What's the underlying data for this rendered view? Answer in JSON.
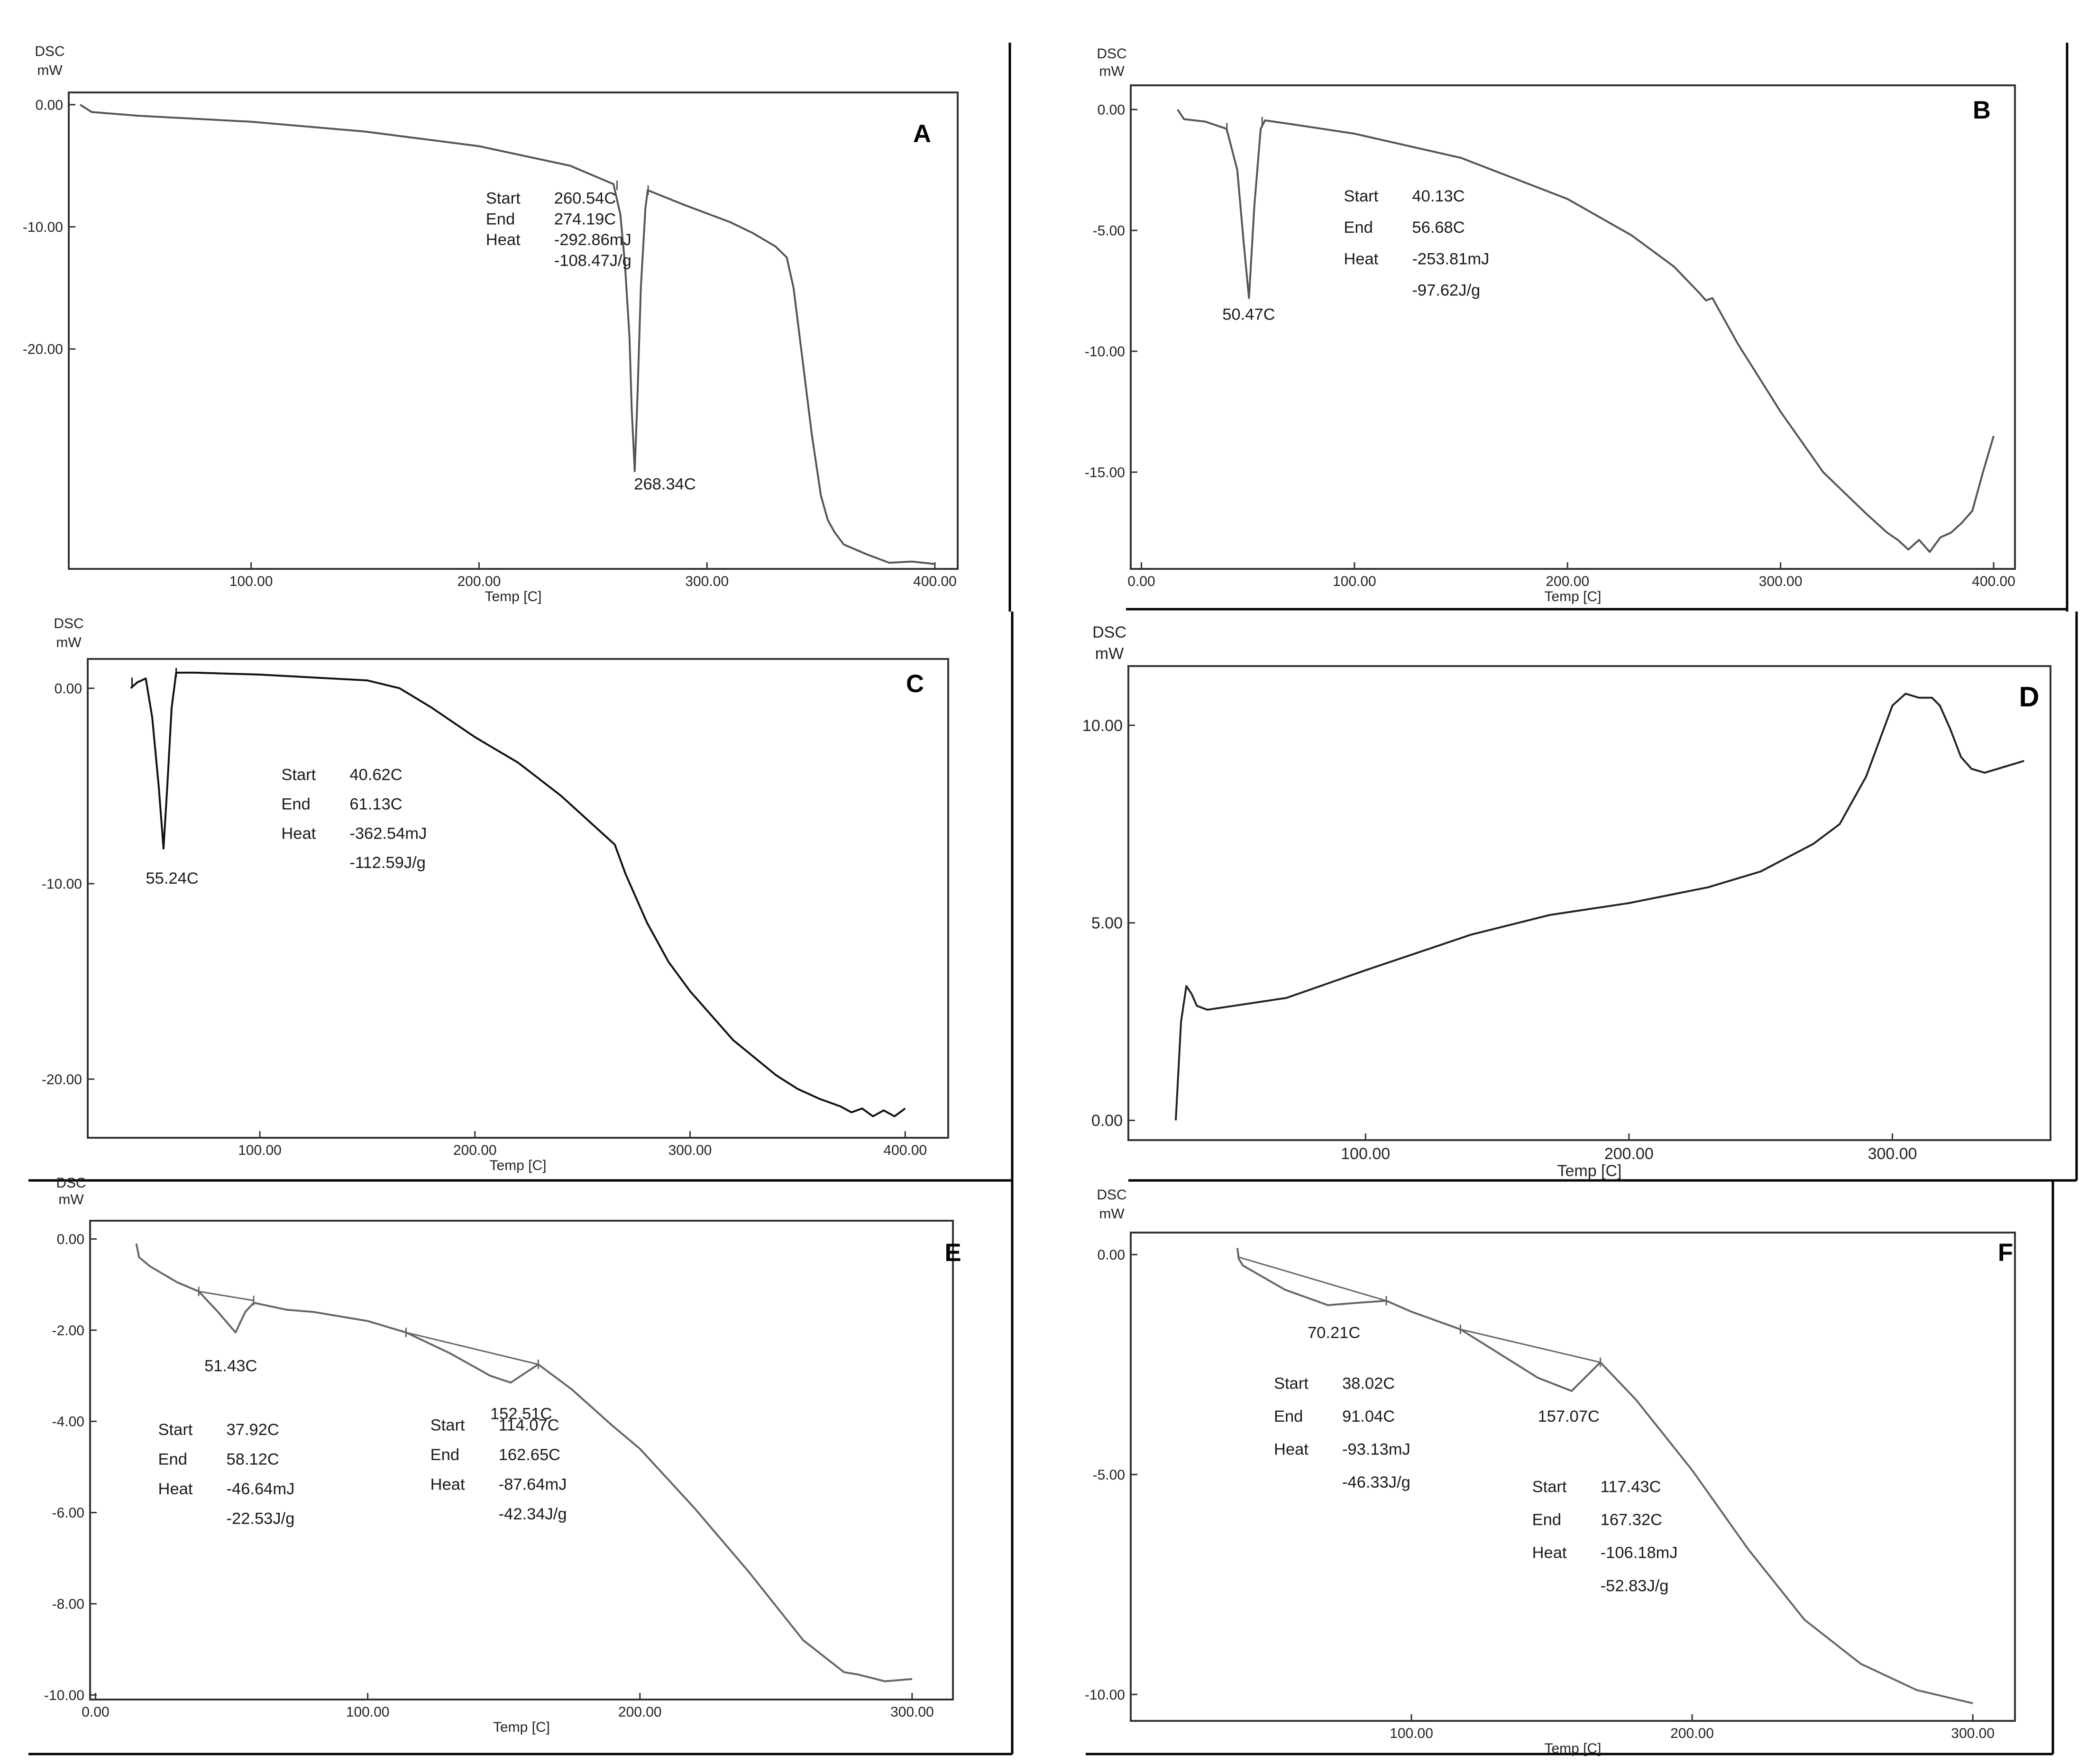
{
  "chart_data": [
    {
      "panel": "A",
      "type": "line",
      "ylabel": "DSC",
      "yunit": "mW",
      "xlabel": "Temp [C]",
      "xlim": [
        20,
        410
      ],
      "ylim": [
        -38,
        1
      ],
      "xticks": [
        100,
        200,
        300,
        400
      ],
      "xtick_labels": [
        "100.00",
        "200.00",
        "300.00",
        "400.00"
      ],
      "yticks": [
        0,
        -10,
        -20
      ],
      "ytick_labels": [
        "0.00",
        "-10.00",
        "-20.00"
      ],
      "color": "#555555",
      "x": [
        25,
        30,
        50,
        100,
        150,
        200,
        240,
        259,
        262,
        264,
        266,
        267,
        268.3,
        269.5,
        271,
        273,
        274,
        290,
        310,
        320,
        330,
        335,
        338,
        342,
        346,
        350,
        353,
        356,
        360,
        370,
        380,
        390,
        400
      ],
      "y": [
        0,
        -0.6,
        -0.9,
        -1.4,
        -2.2,
        -3.4,
        -5.0,
        -6.5,
        -9,
        -13,
        -19,
        -25,
        -30,
        -24,
        -15,
        -8.5,
        -7.0,
        -8.2,
        -9.6,
        -10.5,
        -11.6,
        -12.5,
        -15,
        -21,
        -27,
        -32,
        -34,
        -35,
        -36,
        -36.8,
        -37.5,
        -37.4,
        -37.6
      ],
      "markers": [
        {
          "x": 260.54,
          "y": -6.6
        },
        {
          "x": 274.19,
          "y": -7.0
        }
      ],
      "annotations": [
        {
          "label": "Start",
          "value": "260.54C",
          "x": 203,
          "y": -8.1
        },
        {
          "label": "End",
          "value": "274.19C",
          "x": 203,
          "y": -9.8
        },
        {
          "label": "Heat",
          "value": "-292.86mJ",
          "x": 203,
          "y": -11.5
        },
        {
          "label": "",
          "value": "-108.47J/g",
          "x": 203,
          "y": -13.2
        },
        {
          "label": "",
          "value": "268.34C",
          "x": 268,
          "y": -31.5
        }
      ],
      "letter": "A"
    },
    {
      "panel": "B",
      "type": "line",
      "ylabel": "DSC",
      "yunit": "mW",
      "xlabel": "Temp [C]",
      "xlim": [
        -5,
        410
      ],
      "ylim": [
        -19,
        1
      ],
      "xticks": [
        0,
        100,
        200,
        300,
        400
      ],
      "xtick_labels": [
        "0.00",
        "100.00",
        "200.00",
        "300.00",
        "400.00"
      ],
      "yticks": [
        0,
        -5,
        -10,
        -15
      ],
      "ytick_labels": [
        "0.00",
        "-5.00",
        "-10.00",
        "-15.00"
      ],
      "color": "#555555",
      "x": [
        17,
        20,
        30,
        40,
        45,
        48,
        50.5,
        53,
        56,
        58,
        70,
        100,
        150,
        200,
        230,
        250,
        262,
        265,
        268,
        280,
        300,
        320,
        340,
        350,
        355,
        360,
        365,
        370,
        375,
        380,
        385,
        390,
        395,
        400
      ],
      "y": [
        0,
        -0.4,
        -0.5,
        -0.8,
        -2.5,
        -5.5,
        -7.8,
        -4.0,
        -0.8,
        -0.45,
        -0.6,
        -1.0,
        -2.0,
        -3.7,
        -5.2,
        -6.5,
        -7.6,
        -7.9,
        -7.8,
        -9.7,
        -12.5,
        -15.0,
        -16.7,
        -17.5,
        -17.8,
        -18.2,
        -17.8,
        -18.3,
        -17.7,
        -17.5,
        -17.1,
        -16.6,
        -15.0,
        -13.5
      ],
      "markers": [
        {
          "x": 40.13,
          "y": -0.75
        },
        {
          "x": 56.68,
          "y": -0.5
        }
      ],
      "annotations": [
        {
          "label": "Start",
          "value": "40.13C",
          "x": 95,
          "y": -3.8
        },
        {
          "label": "End",
          "value": "56.68C",
          "x": 95,
          "y": -5.1
        },
        {
          "label": "Heat",
          "value": "-253.81mJ",
          "x": 95,
          "y": -6.4
        },
        {
          "label": "",
          "value": "-97.62J/g",
          "x": 95,
          "y": -7.7
        },
        {
          "label": "",
          "value": "50.47C",
          "x": 38,
          "y": -8.7
        }
      ],
      "letter": "B"
    },
    {
      "panel": "C",
      "type": "line",
      "ylabel": "DSC",
      "yunit": "mW",
      "xlabel": "Temp [C]",
      "xlim": [
        20,
        420
      ],
      "ylim": [
        -23,
        1.5
      ],
      "xticks": [
        100,
        200,
        300,
        400
      ],
      "xtick_labels": [
        "100.00",
        "200.00",
        "300.00",
        "400.00"
      ],
      "yticks": [
        0,
        -10,
        -20
      ],
      "ytick_labels": [
        "0.00",
        "-10.00",
        "-20.00"
      ],
      "color": "#111111",
      "x": [
        40,
        43,
        47,
        50,
        53,
        55.24,
        57,
        59,
        61.13,
        70,
        100,
        150,
        165,
        180,
        200,
        220,
        240,
        255,
        265,
        270,
        280,
        290,
        300,
        320,
        340,
        350,
        360,
        365,
        370,
        375,
        380,
        385,
        390,
        395,
        400
      ],
      "y": [
        0,
        0.3,
        0.5,
        -1.5,
        -5.0,
        -8.2,
        -5.0,
        -1.0,
        0.8,
        0.8,
        0.7,
        0.4,
        0,
        -1.0,
        -2.5,
        -3.8,
        -5.5,
        -7.0,
        -8.0,
        -9.5,
        -12.0,
        -14.0,
        -15.5,
        -18.0,
        -19.8,
        -20.5,
        -21.0,
        -21.2,
        -21.4,
        -21.7,
        -21.5,
        -21.9,
        -21.6,
        -21.9,
        -21.5
      ],
      "markers": [
        {
          "x": 40.62,
          "y": 0.3
        },
        {
          "x": 61.13,
          "y": 0.8
        }
      ],
      "annotations": [
        {
          "label": "Start",
          "value": "40.62C",
          "x": 110,
          "y": -4.7
        },
        {
          "label": "End",
          "value": "61.13C",
          "x": 110,
          "y": -6.2
        },
        {
          "label": "Heat",
          "value": "-362.54mJ",
          "x": 110,
          "y": -7.7
        },
        {
          "label": "",
          "value": "-112.59J/g",
          "x": 110,
          "y": -9.2
        },
        {
          "label": "",
          "value": "55.24C",
          "x": 47,
          "y": -10.0
        }
      ],
      "letter": "C"
    },
    {
      "panel": "D",
      "type": "line",
      "ylabel": "DSC",
      "yunit": "mW",
      "xlabel": "Temp [C]",
      "xlim": [
        10,
        360
      ],
      "ylim": [
        -0.5,
        11.5
      ],
      "xticks": [
        100,
        200,
        300
      ],
      "xtick_labels": [
        "100.00",
        "200.00",
        "300.00"
      ],
      "yticks": [
        0,
        5,
        10
      ],
      "ytick_labels": [
        "0.00",
        "5.00",
        "10.00"
      ],
      "color": "#222222",
      "x": [
        28,
        30,
        32,
        34,
        36,
        40,
        50,
        70,
        100,
        140,
        170,
        200,
        230,
        250,
        270,
        280,
        290,
        300,
        305,
        310,
        315,
        318,
        322,
        326,
        330,
        335,
        340,
        345,
        350
      ],
      "y": [
        0,
        2.5,
        3.4,
        3.2,
        2.9,
        2.8,
        2.9,
        3.1,
        3.8,
        4.7,
        5.2,
        5.5,
        5.9,
        6.3,
        7.0,
        7.5,
        8.7,
        10.5,
        10.8,
        10.7,
        10.7,
        10.5,
        9.9,
        9.2,
        8.9,
        8.8,
        8.9,
        9.0,
        9.1
      ],
      "letter": "D"
    },
    {
      "panel": "E",
      "type": "line",
      "ylabel": "DSC",
      "yunit": "mW",
      "xlabel": "Temp [C]",
      "xlim": [
        -2,
        315
      ],
      "ylim": [
        -10.1,
        0.4
      ],
      "xticks": [
        0,
        100,
        200,
        300
      ],
      "xtick_labels": [
        "0.00",
        "100.00",
        "200.00",
        "300.00"
      ],
      "yticks": [
        0,
        -2,
        -4,
        -6,
        -8,
        -10
      ],
      "ytick_labels": [
        "0.00",
        "-2.00",
        "-4.00",
        "-6.00",
        "-8.00",
        "-10.00"
      ],
      "color": "#666666",
      "x": [
        15,
        16,
        20,
        30,
        37.92,
        45,
        51.43,
        55,
        58.12,
        70,
        80,
        90,
        100,
        114.07,
        130,
        145,
        152.51,
        162.65,
        175,
        190,
        200,
        220,
        240,
        260,
        275,
        280,
        290,
        300
      ],
      "y": [
        -0.1,
        -0.4,
        -0.6,
        -0.95,
        -1.15,
        -1.6,
        -2.05,
        -1.6,
        -1.4,
        -1.55,
        -1.6,
        -1.7,
        -1.8,
        -2.05,
        -2.5,
        -3.0,
        -3.15,
        -2.75,
        -3.3,
        -4.1,
        -4.6,
        -5.9,
        -7.3,
        -8.8,
        -9.5,
        -9.55,
        -9.7,
        -9.65
      ],
      "baselines": [
        {
          "x": [
            37.92,
            58.12
          ],
          "y": [
            -1.15,
            -1.35
          ]
        },
        {
          "x": [
            114.07,
            162.65
          ],
          "y": [
            -2.05,
            -2.75
          ]
        }
      ],
      "markers": [
        {
          "x": 37.92,
          "y": -1.15
        },
        {
          "x": 58.12,
          "y": -1.35
        },
        {
          "x": 114.07,
          "y": -2.05
        },
        {
          "x": 162.65,
          "y": -2.75
        }
      ],
      "annotations": [
        {
          "label": "Start",
          "value": "37.92C",
          "x": 23,
          "y": -4.3
        },
        {
          "label": "End",
          "value": "58.12C",
          "x": 23,
          "y": -4.95
        },
        {
          "label": "Heat",
          "value": "-46.64mJ",
          "x": 23,
          "y": -5.6
        },
        {
          "label": "",
          "value": "-22.53J/g",
          "x": 23,
          "y": -6.25
        },
        {
          "label": "",
          "value": "51.43C",
          "x": 40,
          "y": -2.9
        },
        {
          "label": "Start",
          "value": "114.07C",
          "x": 123,
          "y": -4.2
        },
        {
          "label": "End",
          "value": "162.65C",
          "x": 123,
          "y": -4.85
        },
        {
          "label": "Heat",
          "value": "-87.64mJ",
          "x": 123,
          "y": -5.5
        },
        {
          "label": "",
          "value": "-42.34J/g",
          "x": 123,
          "y": -6.15
        },
        {
          "label": "",
          "value": "152.51C",
          "x": 145,
          "y": -3.95
        }
      ],
      "letter": "E"
    },
    {
      "panel": "F",
      "type": "line",
      "ylabel": "DSC",
      "yunit": "mW",
      "xlabel": "Temp [C]",
      "xlim": [
        0,
        315
      ],
      "ylim": [
        -10.6,
        0.5
      ],
      "xticks": [
        100,
        200,
        300
      ],
      "xtick_labels": [
        "100.00",
        "200.00",
        "300.00"
      ],
      "yticks": [
        0,
        -5,
        -10
      ],
      "ytick_labels": [
        "0.00",
        "-5.00",
        "-10.00"
      ],
      "color": "#666666",
      "x": [
        38,
        38.5,
        40,
        55,
        70.21,
        80,
        91.04,
        100,
        117.43,
        130,
        145,
        157.07,
        167.32,
        180,
        200,
        220,
        240,
        260,
        280,
        300
      ],
      "y": [
        0.15,
        -0.1,
        -0.25,
        -0.8,
        -1.15,
        -1.1,
        -1.05,
        -1.3,
        -1.7,
        -2.2,
        -2.8,
        -3.1,
        -2.45,
        -3.3,
        -4.9,
        -6.7,
        -8.3,
        -9.3,
        -9.9,
        -10.2
      ],
      "baselines": [
        {
          "x": [
            38.02,
            91.04
          ],
          "y": [
            -0.05,
            -1.05
          ]
        },
        {
          "x": [
            117.43,
            167.32
          ],
          "y": [
            -1.7,
            -2.45
          ]
        }
      ],
      "markers": [
        {
          "x": 91.04,
          "y": -1.05
        },
        {
          "x": 117.43,
          "y": -1.7
        },
        {
          "x": 167.32,
          "y": -2.45
        }
      ],
      "annotations": [
        {
          "label": "",
          "value": "70.21C",
          "x": 63,
          "y": -1.9
        },
        {
          "label": "Start",
          "value": "38.02C",
          "x": 51,
          "y": -3.05
        },
        {
          "label": "End",
          "value": "91.04C",
          "x": 51,
          "y": -3.8
        },
        {
          "label": "Heat",
          "value": "-93.13mJ",
          "x": 51,
          "y": -4.55
        },
        {
          "label": "",
          "value": "-46.33J/g",
          "x": 51,
          "y": -5.3
        },
        {
          "label": "",
          "value": "157.07C",
          "x": 145,
          "y": -3.8
        },
        {
          "label": "Start",
          "value": "117.43C",
          "x": 143,
          "y": -5.4
        },
        {
          "label": "End",
          "value": "167.32C",
          "x": 143,
          "y": -6.15
        },
        {
          "label": "Heat",
          "value": "-106.18mJ",
          "x": 143,
          "y": -6.9
        },
        {
          "label": "",
          "value": "-52.83J/g",
          "x": 143,
          "y": -7.65
        }
      ],
      "letter": "F"
    }
  ]
}
